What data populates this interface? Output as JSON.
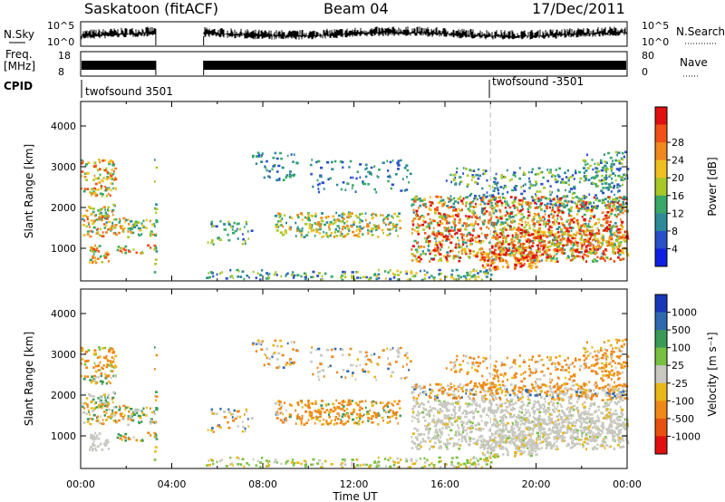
{
  "header": {
    "site": "Saskatoon (fitACF)",
    "beam": "Beam 04",
    "date": "17/Dec/2011"
  },
  "strips": {
    "nsky": {
      "label": "N.Sky",
      "ticks": [
        "10^5",
        "10^0"
      ]
    },
    "nsearch": {
      "label": "N.Search",
      "ticks": [
        "10^5",
        "10^0"
      ]
    },
    "freq": {
      "label_top": "Freq.",
      "label_bottom": "[MHz]",
      "ticks": [
        "18",
        "8"
      ]
    },
    "nave": {
      "label": "Nave",
      "ticks": [
        "80",
        "0"
      ]
    },
    "cpid": {
      "label": "CPID",
      "segments": [
        "twofsound 3501",
        "twofsound -3501"
      ]
    }
  },
  "chart_data": [
    {
      "type": "heatmap",
      "name": "power-panel",
      "ylabel": "Slant Range [km]",
      "yticks": [
        1000,
        2000,
        3000,
        4000
      ],
      "ylim": [
        200,
        4600
      ],
      "xlim": [
        0,
        24
      ],
      "colorbar": {
        "label": "Power [dB]",
        "ticks": [
          "4",
          "8",
          "12",
          "16",
          "20",
          "24",
          "28"
        ],
        "colors": [
          "#1020e0",
          "#2850c8",
          "#2e8a98",
          "#38a868",
          "#a8c828",
          "#f0c020",
          "#f08820",
          "#f05018",
          "#e01010"
        ]
      }
    },
    {
      "type": "heatmap",
      "name": "velocity-panel",
      "ylabel": "Slant Range [km]",
      "yticks": [
        1000,
        2000,
        3000,
        4000
      ],
      "ylim": [
        200,
        4600
      ],
      "xlim": [
        0,
        24
      ],
      "colorbar": {
        "label": "Velocity [m s⁻¹]",
        "ticks": [
          "1000",
          "500",
          "100",
          "25",
          "-25",
          "-100",
          "-500",
          "-1000"
        ],
        "colors": [
          "#1838b8",
          "#2e6ab0",
          "#3a9a58",
          "#78c040",
          "#c8c8c0",
          "#e8b818",
          "#f08818",
          "#e85010",
          "#e01010"
        ]
      }
    }
  ],
  "xaxis": {
    "ticks": [
      "00:00",
      "04:00",
      "08:00",
      "12:00",
      "16:00",
      "20:00",
      "00:00"
    ],
    "label": "Time UT"
  }
}
